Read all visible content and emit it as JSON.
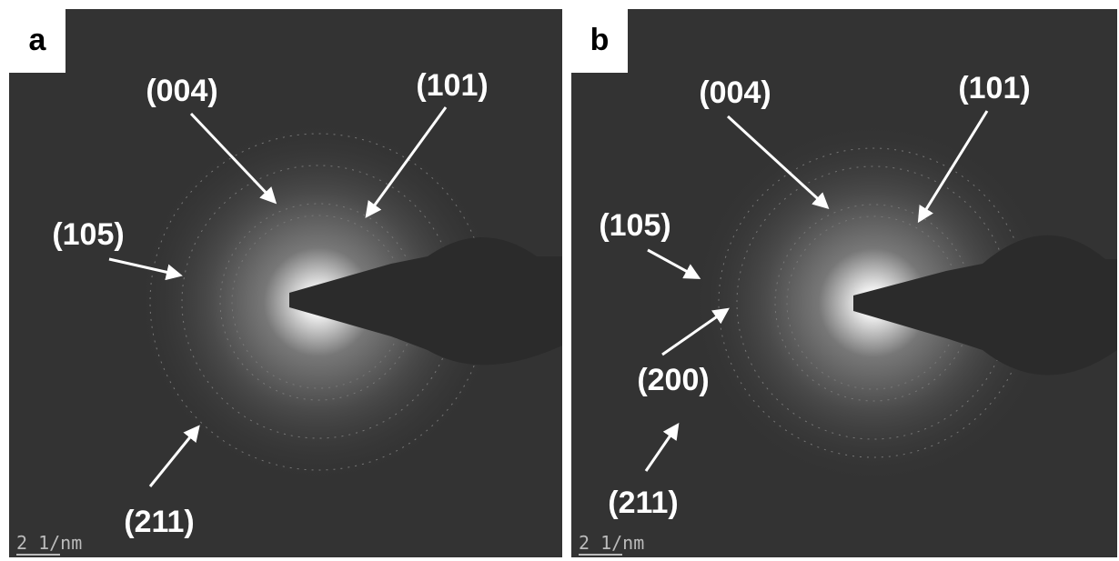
{
  "panels": [
    {
      "label": "a",
      "annotations": [
        "(004)",
        "(101)",
        "(105)",
        "(211)"
      ],
      "scale_bar": "2 1/nm"
    },
    {
      "label": "b",
      "annotations": [
        "(004)",
        "(101)",
        "(105)",
        "(200)",
        "(211)"
      ],
      "scale_bar": "2 1/nm"
    }
  ]
}
